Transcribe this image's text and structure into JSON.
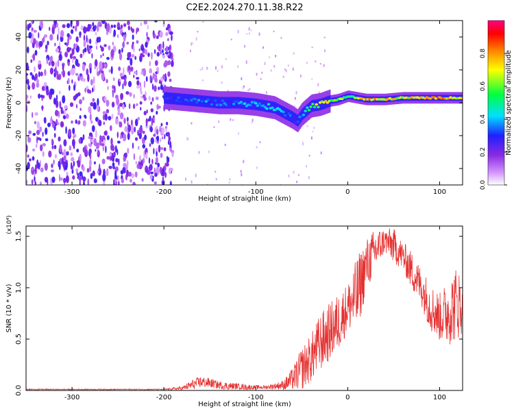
{
  "title": "C2E2.2024.270.11.38.R22",
  "chart_data": [
    {
      "type": "heatmap",
      "title": "",
      "xlabel": "Height of straight line (km)",
      "ylabel": "Frequency (Hz)",
      "xlim": [
        -350,
        125
      ],
      "ylim": [
        -50,
        50
      ],
      "x_ticks": [
        -300,
        -200,
        -100,
        0,
        100
      ],
      "x_tick_labels": [
        "-300",
        "-200",
        "-100",
        "0",
        "100"
      ],
      "y_ticks": [
        -40,
        -20,
        0,
        20,
        40
      ],
      "y_tick_labels": [
        "-40",
        "-20",
        "0",
        "20",
        "40"
      ],
      "colorbar": {
        "label": "Normalized spectral amplitude",
        "range": [
          0,
          1
        ],
        "ticks": [
          0,
          0.2,
          0.4,
          0.6,
          0.8
        ],
        "tick_labels": [
          "0.0",
          "0.2",
          "0.4",
          "0.6",
          "0.8"
        ]
      },
      "ridge": {
        "description_x": [
          -200,
          -180,
          -160,
          -140,
          -120,
          -100,
          -80,
          -70,
          -60,
          -55,
          -50,
          -40,
          -30,
          -20,
          -10,
          0,
          20,
          40,
          60,
          80,
          100,
          125
        ],
        "frequency_hz": [
          3,
          2,
          1,
          0,
          0,
          -1,
          -3,
          -6,
          -9,
          -11,
          -7,
          -2,
          -1,
          1,
          2,
          4,
          2,
          2,
          3,
          3,
          3,
          3
        ],
        "amplitude": [
          0.3,
          0.35,
          0.4,
          0.35,
          0.4,
          0.45,
          0.5,
          0.4,
          0.35,
          0.3,
          0.4,
          0.6,
          0.7,
          0.75,
          0.7,
          0.55,
          0.85,
          0.8,
          0.75,
          0.8,
          0.85,
          0.8
        ]
      },
      "noise_region_x": [
        -350,
        -190
      ],
      "grid": false
    },
    {
      "type": "line",
      "title": "",
      "xlabel": "Height of straight line (km)",
      "ylabel": "SNR (10 * v/v)",
      "y_scale_label": "(x10⁴)",
      "xlim": [
        -350,
        125
      ],
      "ylim": [
        0,
        1.6
      ],
      "x_ticks": [
        -300,
        -200,
        -100,
        0,
        100
      ],
      "x_tick_labels": [
        "-300",
        "-200",
        "-100",
        "0",
        "100"
      ],
      "y_ticks": [
        0,
        0.5,
        1.0,
        1.5
      ],
      "y_tick_labels": [
        "0.0",
        "0.5",
        "1.0",
        "1.5"
      ],
      "series": [
        {
          "name": "",
          "color": "#e53030",
          "x": [
            -350,
            -300,
            -250,
            -200,
            -180,
            -170,
            -160,
            -150,
            -140,
            -130,
            -120,
            -110,
            -100,
            -90,
            -80,
            -70,
            -60,
            -50,
            -40,
            -30,
            -20,
            -10,
            0,
            10,
            20,
            30,
            40,
            50,
            60,
            70,
            80,
            90,
            100,
            110,
            120,
            125
          ],
          "y": [
            0.01,
            0.01,
            0.01,
            0.01,
            0.02,
            0.05,
            0.08,
            0.07,
            0.05,
            0.04,
            0.04,
            0.03,
            0.03,
            0.03,
            0.04,
            0.05,
            0.1,
            0.2,
            0.3,
            0.45,
            0.55,
            0.65,
            0.8,
            0.9,
            1.2,
            1.35,
            1.45,
            1.4,
            1.3,
            1.15,
            1.0,
            0.8,
            0.7,
            0.75,
            0.85,
            0.75
          ],
          "envelope_max": [
            0.015,
            0.015,
            0.015,
            0.015,
            0.04,
            0.1,
            0.14,
            0.12,
            0.09,
            0.08,
            0.07,
            0.06,
            0.05,
            0.05,
            0.07,
            0.1,
            0.22,
            0.42,
            0.55,
            0.75,
            0.85,
            0.95,
            1.05,
            1.3,
            1.48,
            1.58,
            1.58,
            1.58,
            1.45,
            1.35,
            1.2,
            1.05,
            0.95,
            1.1,
            1.25,
            0.95
          ]
        }
      ],
      "grid": false
    }
  ]
}
